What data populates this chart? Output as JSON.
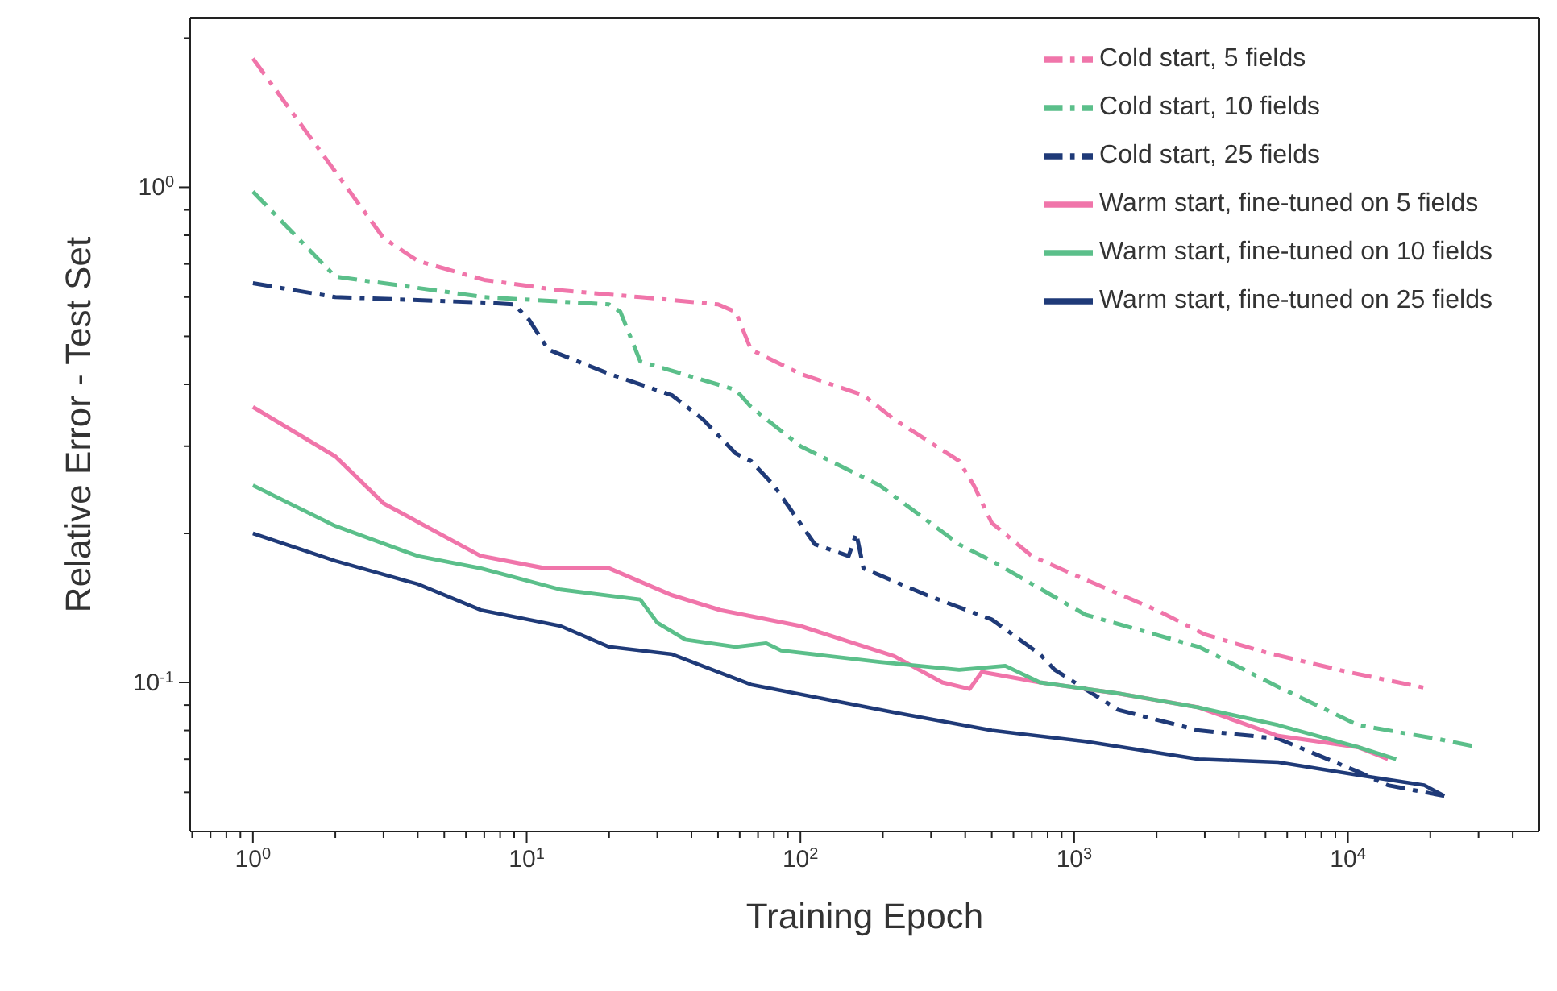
{
  "chart_data": {
    "type": "line",
    "xlabel": "Training Epoch",
    "ylabel": "Relative Error - Test Set",
    "log": "xy",
    "legend": "top right",
    "xlim": [
      0.59,
      50000
    ],
    "ylim": [
      0.05,
      2.2
    ],
    "xticks": [
      {
        "value": 0.6,
        "label": null
      },
      {
        "value": 0.7,
        "label": null
      },
      {
        "value": 0.8,
        "label": null
      },
      {
        "value": 0.9,
        "label": null
      },
      {
        "value": 1,
        "label": "10$^{0}$"
      },
      {
        "value": 2,
        "label": null
      },
      {
        "value": 3,
        "label": null
      },
      {
        "value": 4,
        "label": null
      },
      {
        "value": 5,
        "label": null
      },
      {
        "value": 6,
        "label": null
      },
      {
        "value": 7,
        "label": null
      },
      {
        "value": 8,
        "label": null
      },
      {
        "value": 9,
        "label": null
      },
      {
        "value": 10,
        "label": "10$^{1}$"
      },
      {
        "value": 20,
        "label": null
      },
      {
        "value": 30,
        "label": null
      },
      {
        "value": 40,
        "label": null
      },
      {
        "value": 50,
        "label": null
      },
      {
        "value": 60,
        "label": null
      },
      {
        "value": 70,
        "label": null
      },
      {
        "value": 80,
        "label": null
      },
      {
        "value": 90,
        "label": null
      },
      {
        "value": 100,
        "label": "10$^{2}$"
      },
      {
        "value": 200,
        "label": null
      },
      {
        "value": 300,
        "label": null
      },
      {
        "value": 400,
        "label": null
      },
      {
        "value": 500,
        "label": null
      },
      {
        "value": 600,
        "label": null
      },
      {
        "value": 700,
        "label": null
      },
      {
        "value": 800,
        "label": null
      },
      {
        "value": 900,
        "label": null
      },
      {
        "value": 1000,
        "label": "10$^{3}$"
      },
      {
        "value": 2000,
        "label": null
      },
      {
        "value": 3000,
        "label": null
      },
      {
        "value": 4000,
        "label": null
      },
      {
        "value": 5000,
        "label": null
      },
      {
        "value": 6000,
        "label": null
      },
      {
        "value": 7000,
        "label": null
      },
      {
        "value": 8000,
        "label": null
      },
      {
        "value": 9000,
        "label": null
      },
      {
        "value": 10000,
        "label": "10$^{4}$"
      },
      {
        "value": 20000,
        "label": null
      },
      {
        "value": 30000,
        "label": null
      },
      {
        "value": 40000,
        "label": null
      }
    ],
    "yticks": [
      {
        "value": 0.06,
        "label": null
      },
      {
        "value": 0.07,
        "label": null
      },
      {
        "value": 0.08,
        "label": null
      },
      {
        "value": 0.09,
        "label": null
      },
      {
        "value": 0.1,
        "label": "10$^{-1}$"
      },
      {
        "value": 0.2,
        "label": null
      },
      {
        "value": 0.3,
        "label": null
      },
      {
        "value": 0.4,
        "label": null
      },
      {
        "value": 0.5,
        "label": null
      },
      {
        "value": 0.6,
        "label": null
      },
      {
        "value": 0.7,
        "label": null
      },
      {
        "value": 0.8,
        "label": null
      },
      {
        "value": 0.9,
        "label": null
      },
      {
        "value": 1,
        "label": "10$^{0}$"
      },
      {
        "value": 2,
        "label": null
      }
    ],
    "series": [
      {
        "name": "Cold start, 5 fields",
        "color": "#f075aa",
        "line_style": "dashed",
        "x": [
          1,
          3,
          4,
          7,
          13,
          26,
          50,
          58,
          66,
          100,
          170,
          220,
          380,
          430,
          500,
          700,
          1000,
          2000,
          3000,
          5000,
          10000,
          20000
        ],
        "values": [
          1.82,
          0.79,
          0.71,
          0.65,
          0.62,
          0.6,
          0.58,
          0.56,
          0.47,
          0.42,
          0.38,
          0.34,
          0.28,
          0.25,
          0.21,
          0.18,
          0.165,
          0.14,
          0.125,
          0.115,
          0.105,
          0.097
        ]
      },
      {
        "name": "Cold start, 10 fields",
        "color": "#5bbf8a",
        "line_style": "dashed",
        "x": [
          1,
          2,
          7,
          20,
          22,
          26,
          58,
          66,
          100,
          195,
          380,
          500,
          1100,
          2850,
          5560,
          10900,
          21000,
          30000
        ],
        "values": [
          0.98,
          0.66,
          0.6,
          0.58,
          0.56,
          0.445,
          0.39,
          0.36,
          0.3,
          0.25,
          0.19,
          0.176,
          0.137,
          0.118,
          0.098,
          0.082,
          0.077,
          0.074
        ]
      },
      {
        "name": "Cold start, 25 fields",
        "color": "#1f3a78",
        "line_style": "dashed",
        "x": [
          1,
          2,
          7,
          9,
          10.2,
          12,
          20,
          34,
          44,
          58,
          66,
          80,
          113,
          150,
          160,
          170,
          290,
          500,
          750,
          850,
          1450,
          2850,
          5560,
          10900,
          14000,
          22500
        ],
        "values": [
          0.64,
          0.6,
          0.585,
          0.58,
          0.54,
          0.47,
          0.42,
          0.38,
          0.34,
          0.29,
          0.28,
          0.25,
          0.19,
          0.18,
          0.2,
          0.17,
          0.15,
          0.134,
          0.114,
          0.106,
          0.088,
          0.08,
          0.077,
          0.066,
          0.062,
          0.059
        ]
      },
      {
        "name": "Warm start, fine-tuned on 5 fields",
        "color": "#f075aa",
        "line_style": "solid",
        "x": [
          1,
          2,
          3,
          6.8,
          11.7,
          20,
          34,
          51,
          100,
          220,
          330,
          415,
          460,
          750,
          1450,
          2850,
          5560,
          10900,
          14000
        ],
        "values": [
          0.36,
          0.286,
          0.23,
          0.18,
          0.17,
          0.17,
          0.15,
          0.14,
          0.13,
          0.113,
          0.1,
          0.097,
          0.105,
          0.1,
          0.095,
          0.089,
          0.078,
          0.074,
          0.07
        ]
      },
      {
        "name": "Warm start, fine-tuned on 10 fields",
        "color": "#5bbf8a",
        "line_style": "solid",
        "x": [
          1,
          2,
          4,
          6.8,
          13.3,
          26,
          30,
          38,
          58,
          75,
          85,
          195,
          380,
          560,
          750,
          1450,
          2850,
          5560,
          10900,
          15000
        ],
        "values": [
          0.25,
          0.207,
          0.18,
          0.17,
          0.154,
          0.147,
          0.132,
          0.122,
          0.118,
          0.12,
          0.116,
          0.11,
          0.106,
          0.108,
          0.1,
          0.095,
          0.089,
          0.082,
          0.074,
          0.07
        ]
      },
      {
        "name": "Warm start, fine-tuned on 25 fields",
        "color": "#1f3a78",
        "line_style": "solid",
        "x": [
          1,
          2,
          4,
          6.8,
          13.3,
          20,
          34,
          66,
          130,
          220,
          500,
          1100,
          2850,
          5560,
          10900,
          19000,
          22500
        ],
        "values": [
          0.2,
          0.176,
          0.158,
          0.14,
          0.13,
          0.118,
          0.114,
          0.099,
          0.092,
          0.087,
          0.08,
          0.076,
          0.07,
          0.069,
          0.065,
          0.062,
          0.059
        ]
      }
    ]
  }
}
